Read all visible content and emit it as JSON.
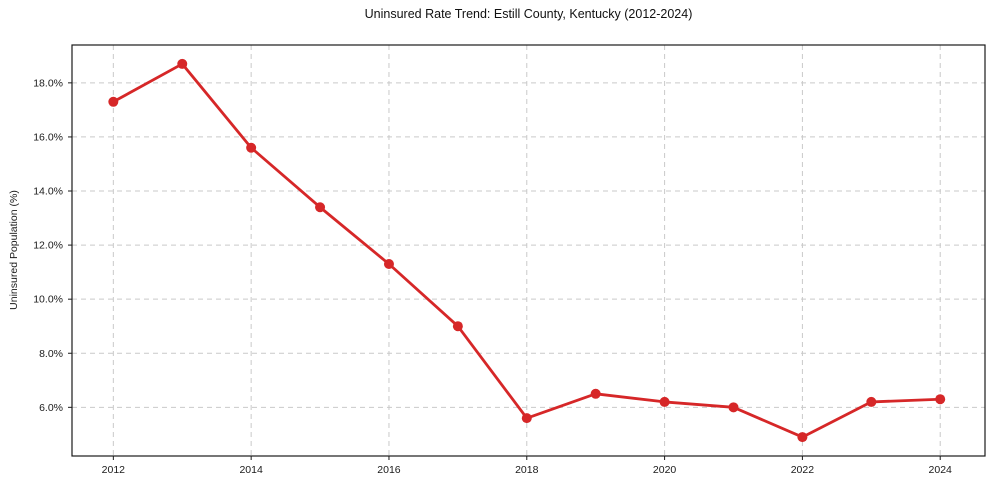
{
  "chart_data": {
    "type": "line",
    "title": "Uninsured Rate Trend: Estill County, Kentucky (2012-2024)",
    "xlabel": "",
    "ylabel": "Uninsured Population (%)",
    "series_name": "Uninsured rate",
    "x": [
      2012,
      2013,
      2014,
      2015,
      2016,
      2017,
      2018,
      2019,
      2020,
      2021,
      2022,
      2023,
      2024
    ],
    "values": [
      17.3,
      18.7,
      15.6,
      13.4,
      11.3,
      9.0,
      5.6,
      6.5,
      6.2,
      6.0,
      4.9,
      6.2,
      6.3
    ],
    "xlim": [
      2011.4,
      2024.65
    ],
    "ylim": [
      4.2,
      19.4
    ],
    "xticks": [
      2012,
      2014,
      2016,
      2018,
      2020,
      2022,
      2024
    ],
    "xtick_labels": [
      "2012",
      "2014",
      "2016",
      "2018",
      "2020",
      "2022",
      "2024"
    ],
    "yticks": [
      6,
      8,
      10,
      12,
      14,
      16,
      18
    ],
    "ytick_labels": [
      "6.0%",
      "8.0%",
      "10.0%",
      "12.0%",
      "14.0%",
      "16.0%",
      "18.0%"
    ],
    "grid": true,
    "legend": false,
    "style": {
      "line_color": "#d62728",
      "marker_color": "#d62728",
      "grid_color": "#c9c9c9",
      "spine_color": "#1a1a1a",
      "tick_color": "#1a1a1a",
      "background": "#ffffff",
      "title_color": "#111111",
      "line_width": 2.8,
      "marker_radius": 5
    }
  }
}
